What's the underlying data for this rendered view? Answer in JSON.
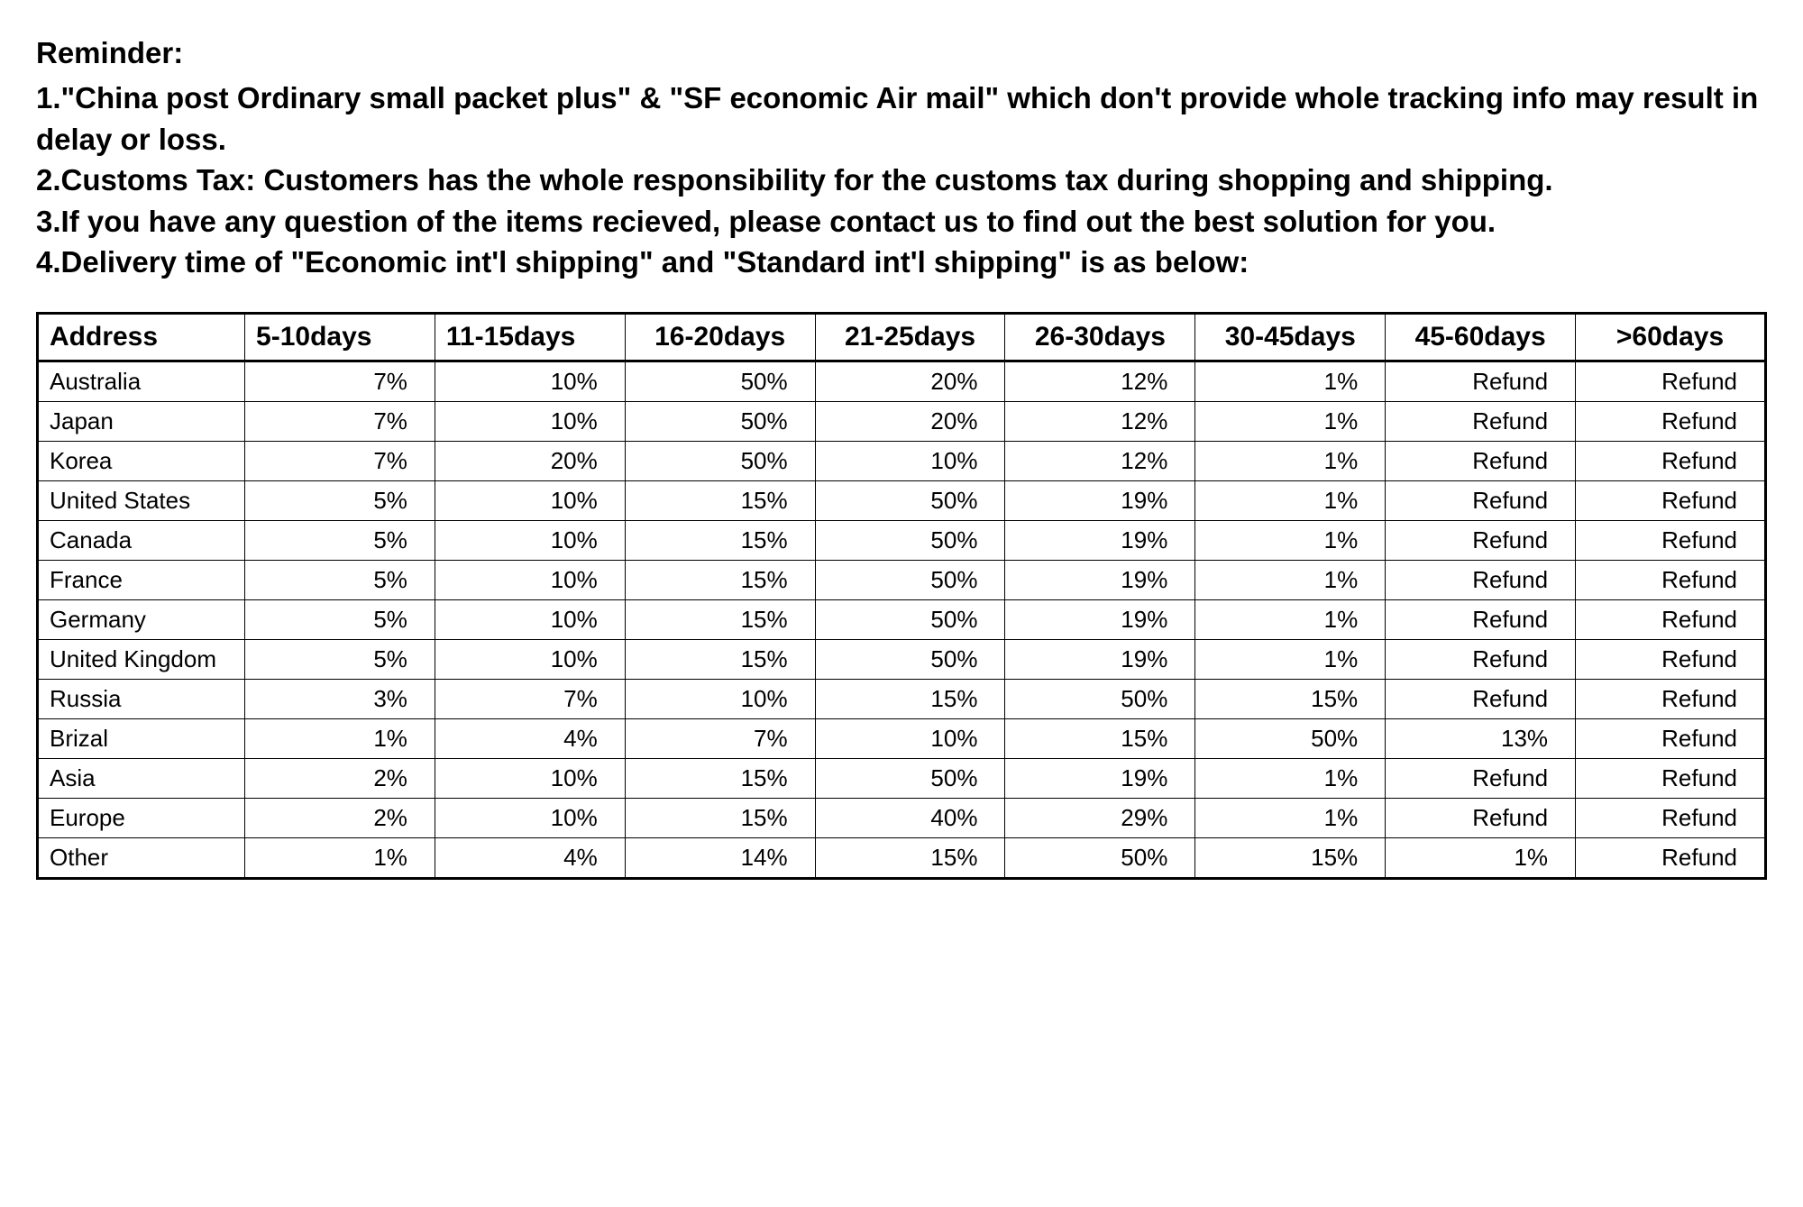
{
  "reminder": {
    "title": "Reminder:",
    "lines": [
      "1.\"China post Ordinary small packet plus\" & \"SF economic Air mail\" which don't provide whole tracking info may result in delay or loss.",
      "2.Customs Tax: Customers has the whole responsibility for the customs tax during shopping and shipping.",
      "3.If you have any question of the items recieved, please contact us to find out the best solution for you.",
      "4.Delivery time of \"Economic int'l shipping\" and \"Standard int'l shipping\" is as below:"
    ]
  },
  "table": {
    "columns": [
      "Address",
      "5-10days",
      "11-15days",
      "16-20days",
      "21-25days",
      "26-30days",
      "30-45days",
      "45-60days",
      ">60days"
    ],
    "rows": [
      {
        "address": "Australia",
        "values": [
          "7%",
          "10%",
          "50%",
          "20%",
          "12%",
          "1%",
          "Refund",
          "Refund"
        ]
      },
      {
        "address": "Japan",
        "values": [
          "7%",
          "10%",
          "50%",
          "20%",
          "12%",
          "1%",
          "Refund",
          "Refund"
        ]
      },
      {
        "address": "Korea",
        "values": [
          "7%",
          "20%",
          "50%",
          "10%",
          "12%",
          "1%",
          "Refund",
          "Refund"
        ]
      },
      {
        "address": "United States",
        "values": [
          "5%",
          "10%",
          "15%",
          "50%",
          "19%",
          "1%",
          "Refund",
          "Refund"
        ]
      },
      {
        "address": "Canada",
        "values": [
          "5%",
          "10%",
          "15%",
          "50%",
          "19%",
          "1%",
          "Refund",
          "Refund"
        ]
      },
      {
        "address": "France",
        "values": [
          "5%",
          "10%",
          "15%",
          "50%",
          "19%",
          "1%",
          "Refund",
          "Refund"
        ]
      },
      {
        "address": "Germany",
        "values": [
          "5%",
          "10%",
          "15%",
          "50%",
          "19%",
          "1%",
          "Refund",
          "Refund"
        ]
      },
      {
        "address": "United Kingdom",
        "values": [
          "5%",
          "10%",
          "15%",
          "50%",
          "19%",
          "1%",
          "Refund",
          "Refund"
        ]
      },
      {
        "address": "Russia",
        "values": [
          "3%",
          "7%",
          "10%",
          "15%",
          "50%",
          "15%",
          "Refund",
          "Refund"
        ]
      },
      {
        "address": "Brizal",
        "values": [
          "1%",
          "4%",
          "7%",
          "10%",
          "15%",
          "50%",
          "13%",
          "Refund"
        ]
      },
      {
        "address": "Asia",
        "values": [
          "2%",
          "10%",
          "15%",
          "50%",
          "19%",
          "1%",
          "Refund",
          "Refund"
        ]
      },
      {
        "address": "Europe",
        "values": [
          "2%",
          "10%",
          "15%",
          "40%",
          "29%",
          "1%",
          "Refund",
          "Refund"
        ]
      },
      {
        "address": "Other",
        "values": [
          "1%",
          "4%",
          "14%",
          "15%",
          "50%",
          "15%",
          "1%",
          "Refund"
        ]
      }
    ]
  },
  "styling": {
    "background_color": "#ffffff",
    "text_color": "#000000",
    "border_color": "#000000",
    "outer_border_width": 3,
    "inner_border_width": 1,
    "title_fontsize": 33,
    "line_fontsize": 33,
    "header_fontsize": 30,
    "cell_fontsize": 26
  }
}
